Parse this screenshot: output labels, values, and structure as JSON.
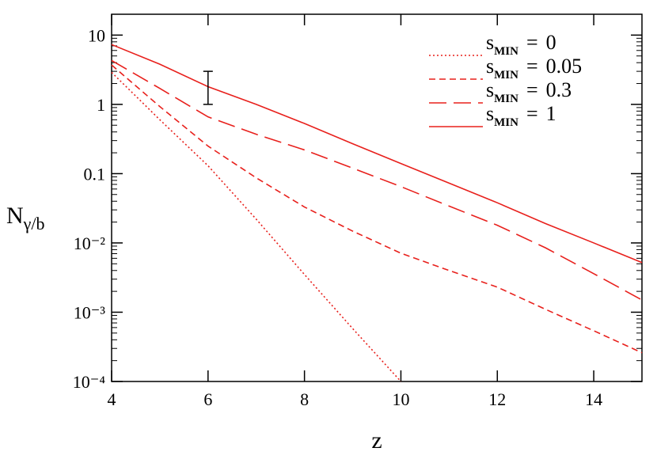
{
  "chart_data": {
    "type": "line",
    "xlabel": "z",
    "ylabel": "N",
    "ylabel_subscript": "γ/b",
    "log_scale_y": true,
    "xlim": [
      4,
      15
    ],
    "ylim": [
      0.0001,
      20
    ],
    "xticks": [
      4,
      6,
      8,
      10,
      12,
      14
    ],
    "yticks": [
      {
        "value": 10,
        "label": "10"
      },
      {
        "value": 1,
        "label": "1"
      },
      {
        "value": 0.1,
        "label": "0.1"
      },
      {
        "value": 0.01,
        "label": "10⁻²"
      },
      {
        "value": 0.001,
        "label": "10⁻³"
      },
      {
        "value": 0.0001,
        "label": "10⁻⁴"
      }
    ],
    "legend_position": "upper right",
    "legend_symbol": "s",
    "legend_subscript": "MIN",
    "legend_operator": "=",
    "series": [
      {
        "name": "0",
        "color": "#e8201c",
        "dash": "dotted",
        "x": [
          4,
          5,
          6,
          7,
          8,
          9,
          10
        ],
        "values": [
          2.9,
          0.6,
          0.13,
          0.022,
          0.0035,
          0.00058,
          0.0001
        ]
      },
      {
        "name": "0.05",
        "color": "#e8201c",
        "dash": "short",
        "x": [
          4,
          5,
          6,
          7,
          8,
          9,
          10,
          11,
          12,
          13,
          14,
          15
        ],
        "values": [
          3.7,
          0.93,
          0.25,
          0.087,
          0.033,
          0.0148,
          0.0071,
          0.004,
          0.0023,
          0.0011,
          0.00054,
          0.00026
        ]
      },
      {
        "name": "0.3",
        "color": "#e8201c",
        "dash": "long",
        "x": [
          4,
          5,
          6,
          7,
          8,
          9,
          10,
          11,
          12,
          13,
          14,
          15
        ],
        "values": [
          4.3,
          1.7,
          0.66,
          0.37,
          0.22,
          0.12,
          0.065,
          0.034,
          0.018,
          0.0085,
          0.0036,
          0.0015
        ]
      },
      {
        "name": "1",
        "color": "#e8201c",
        "dash": "solid",
        "x": [
          4,
          5,
          6,
          7,
          8,
          9,
          10,
          11,
          12,
          13,
          14,
          15
        ],
        "values": [
          7.3,
          3.8,
          1.8,
          1.0,
          0.53,
          0.27,
          0.14,
          0.073,
          0.038,
          0.019,
          0.01,
          0.0052
        ]
      }
    ],
    "error_bar": {
      "x": 6,
      "low": 1,
      "high": 3,
      "color": "#000000"
    }
  }
}
